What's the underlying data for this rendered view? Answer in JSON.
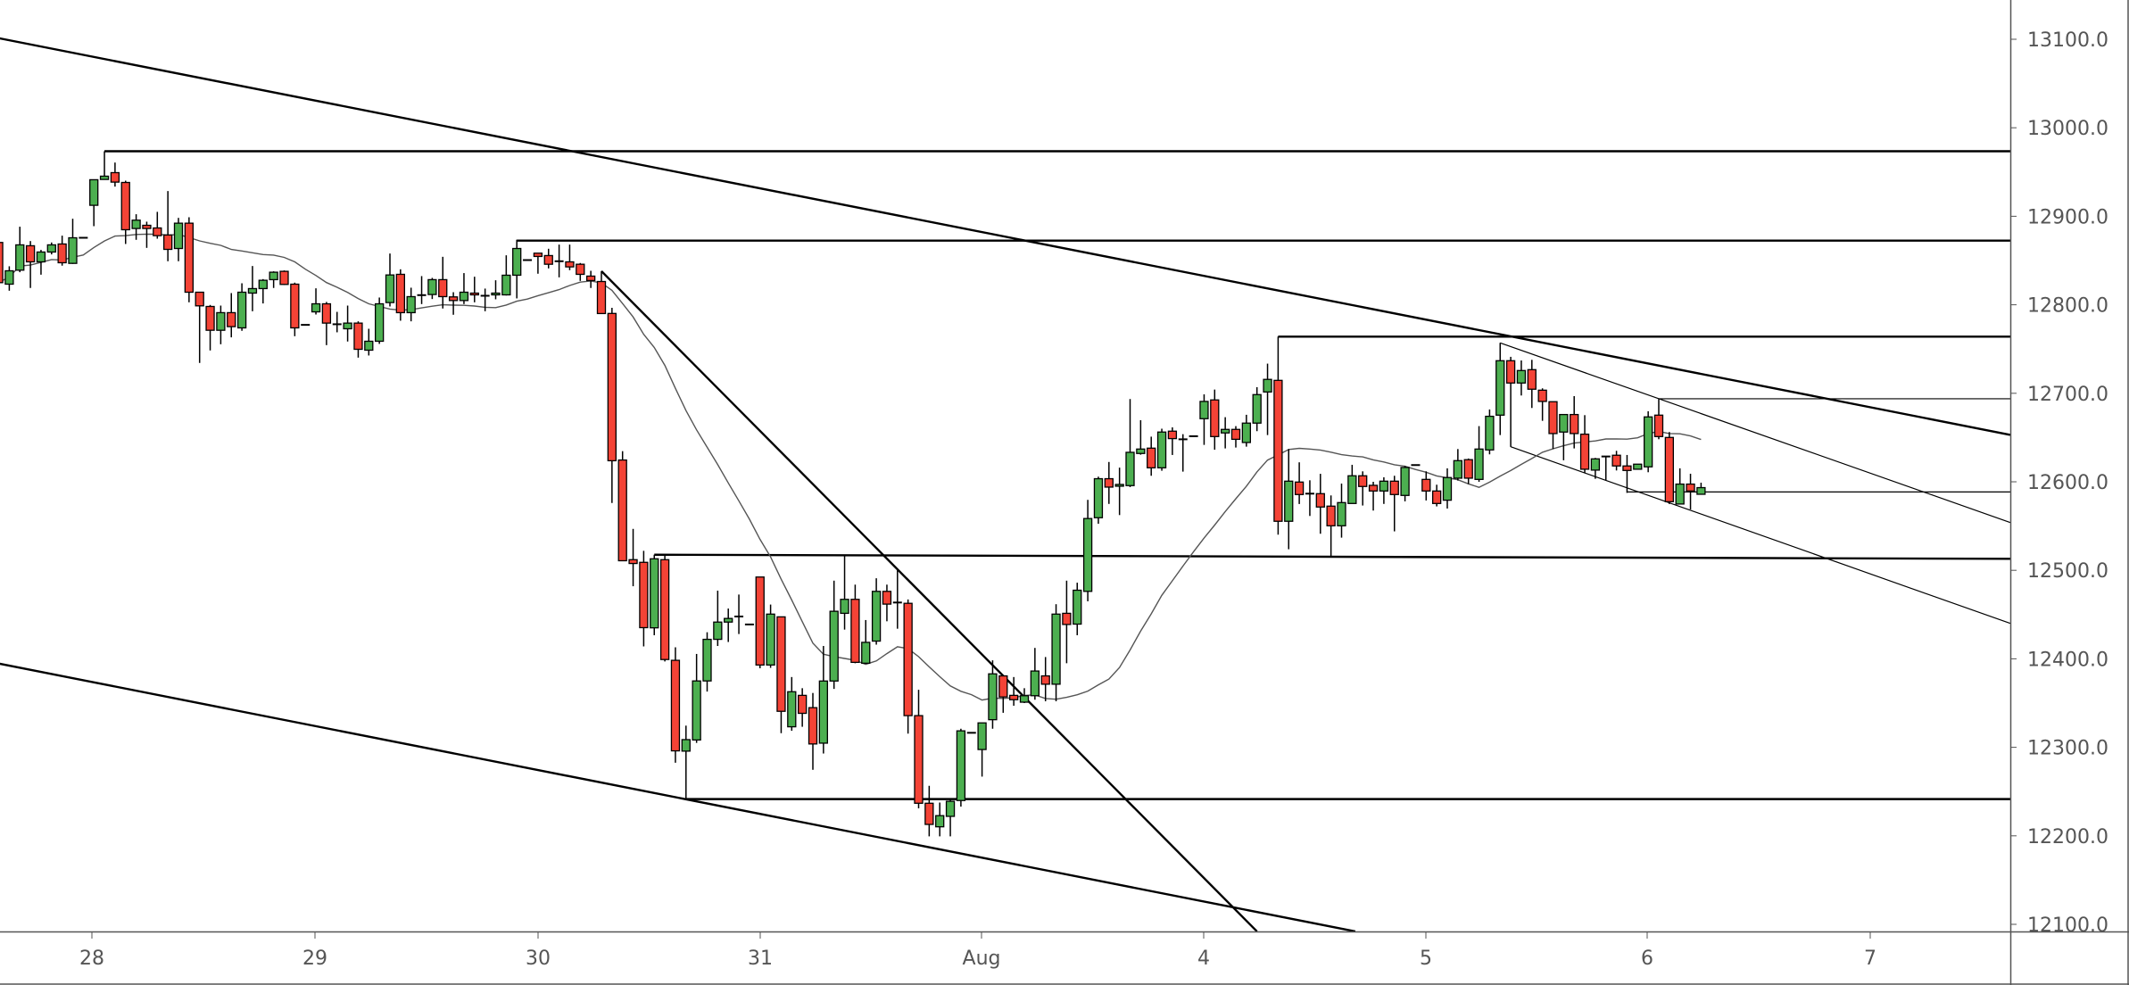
{
  "chart_data": {
    "type": "candlestick",
    "title": "",
    "price_axis": {
      "side": "right",
      "range": [
        12092,
        13122
      ],
      "ticks": [
        "13100.0",
        "13000.0",
        "12900.0",
        "12800.0",
        "12700.0",
        "12600.0",
        "12500.0",
        "12400.0",
        "12300.0",
        "12200.0",
        "12100.0"
      ]
    },
    "time_axis": {
      "ticks": [
        "28",
        "29",
        "30",
        "31",
        "Aug",
        "4",
        "5",
        "6",
        "7"
      ]
    },
    "colors": {
      "up": "#4caf50",
      "down": "#f44336",
      "outline": "#000000",
      "ma": "#555555",
      "drawings": "#000000"
    },
    "moving_average": {
      "type": "SMA",
      "period": 20
    },
    "candle_fields": [
      "open",
      "high",
      "low",
      "close"
    ],
    "candles": [
      [
        12870.4,
        12878.8,
        12821.6,
        12825.0
      ],
      [
        12823.3,
        12843.5,
        12815.9,
        12838.4
      ],
      [
        12839.1,
        12888.2,
        12836.8,
        12867.7
      ],
      [
        12866.7,
        12872.0,
        12819.0,
        12848.5
      ],
      [
        12848.5,
        12862.0,
        12834.0,
        12859.6
      ],
      [
        12859.6,
        12870.4,
        12856.9,
        12867.7
      ],
      [
        12868.7,
        12878.1,
        12844.2,
        12847.5
      ],
      [
        12846.8,
        12897.2,
        12846.2,
        12875.7
      ],
      [
        12875.7,
        12875.7,
        12875.7,
        12875.7
      ],
      [
        12912.4,
        12941.3,
        12888.8,
        12941.3
      ],
      [
        12941.6,
        12973.5,
        12941.6,
        12945.3
      ],
      [
        12949.3,
        12960.7,
        12933.5,
        12938.6
      ],
      [
        12938.2,
        12940.2,
        12868.7,
        12884.8
      ],
      [
        12886.2,
        12902.3,
        12873.4,
        12895.6
      ],
      [
        12889.8,
        12893.9,
        12864.3,
        12886.2
      ],
      [
        12886.8,
        12905.0,
        12874.7,
        12878.1
      ],
      [
        12878.8,
        12928.5,
        12849.2,
        12862.6
      ],
      [
        12863.6,
        12898.2,
        12849.2,
        12892.2
      ],
      [
        12892.2,
        12898.9,
        12802.8,
        12814.2
      ],
      [
        12814.2,
        12814.2,
        12734.3,
        12798.8
      ],
      [
        12798.1,
        12799.8,
        12748.4,
        12771.2
      ],
      [
        12771.2,
        12799.1,
        12755.4,
        12791.1
      ],
      [
        12791.1,
        12813.2,
        12763.2,
        12775.3
      ],
      [
        12773.9,
        12824.3,
        12770.6,
        12814.2
      ],
      [
        12813.2,
        12843.8,
        12792.7,
        12818.3
      ],
      [
        12818.3,
        12829.0,
        12801.5,
        12827.7
      ],
      [
        12828.4,
        12837.8,
        12819.0,
        12836.8
      ],
      [
        12837.8,
        12838.8,
        12822.3,
        12823.0
      ],
      [
        12823.3,
        12825.0,
        12764.5,
        12773.9
      ],
      [
        12777.3,
        12777.3,
        12777.3,
        12777.3
      ],
      [
        12792.0,
        12818.6,
        12789.0,
        12801.1
      ],
      [
        12801.1,
        12803.2,
        12754.4,
        12779.3
      ],
      [
        12778.0,
        12792.0,
        12768.9,
        12778.0
      ],
      [
        12772.9,
        12799.1,
        12758.5,
        12779.3
      ],
      [
        12779.3,
        12781.3,
        12740.3,
        12749.7
      ],
      [
        12748.7,
        12772.9,
        12742.7,
        12758.8
      ],
      [
        12758.8,
        12808.2,
        12755.8,
        12801.1
      ],
      [
        12802.5,
        12857.9,
        12798.1,
        12833.7
      ],
      [
        12834.4,
        12840.1,
        12782.0,
        12791.1
      ],
      [
        12791.1,
        12819.3,
        12781.3,
        12809.2
      ],
      [
        12810.9,
        12832.4,
        12800.8,
        12810.9
      ],
      [
        12811.6,
        12830.4,
        12806.5,
        12828.4
      ],
      [
        12828.4,
        12854.2,
        12795.8,
        12809.2
      ],
      [
        12808.9,
        12814.2,
        12788.7,
        12804.8
      ],
      [
        12804.8,
        12835.8,
        12800.8,
        12814.2
      ],
      [
        12813.2,
        12831.7,
        12802.8,
        12811.2
      ],
      [
        12810.2,
        12818.3,
        12792.7,
        12810.2
      ],
      [
        12811.2,
        12827.7,
        12806.2,
        12813.2
      ],
      [
        12811.2,
        12855.9,
        12810.5,
        12833.4
      ],
      [
        12833.4,
        12873.4,
        12807.2,
        12863.6
      ],
      [
        12850.5,
        12850.5,
        12850.5,
        12850.5
      ],
      [
        12858.3,
        12858.3,
        12835.1,
        12854.6
      ],
      [
        12855.6,
        12863.3,
        12841.1,
        12845.8
      ],
      [
        12849.2,
        12868.0,
        12831.0,
        12849.2
      ],
      [
        12848.5,
        12868.0,
        12839.1,
        12842.8
      ],
      [
        12845.8,
        12847.2,
        12827.0,
        12834.4
      ],
      [
        12832.4,
        12838.4,
        12819.0,
        12827.4
      ],
      [
        12826.3,
        12837.8,
        12790.1,
        12790.1
      ],
      [
        12790.2,
        12796.6,
        12576.0,
        12623.8
      ],
      [
        12624.6,
        12634.6,
        12510.8,
        12510.8
      ],
      [
        12512.0,
        12546.8,
        12482.0,
        12507.7
      ],
      [
        12509.0,
        12522.0,
        12414.0,
        12435.2
      ],
      [
        12435.0,
        12517.6,
        12426.6,
        12513.0
      ],
      [
        12512.0,
        12516.6,
        12397.0,
        12399.2
      ],
      [
        12398.3,
        12413.0,
        12282.6,
        12296.0
      ],
      [
        12295.7,
        12324.5,
        12241.3,
        12308.7
      ],
      [
        12308.3,
        12405.5,
        12305.0,
        12375.0
      ],
      [
        12375.0,
        12430.0,
        12363.0,
        12422.0
      ],
      [
        12422.0,
        12477.0,
        12414.5,
        12441.5
      ],
      [
        12441.5,
        12456.8,
        12419.0,
        12445.6
      ],
      [
        12447.8,
        12472.6,
        12428.0,
        12447.8
      ],
      [
        12438.8,
        12438.8,
        12438.8,
        12438.8
      ],
      [
        12492.4,
        12492.4,
        12389.3,
        12393.0
      ],
      [
        12393.0,
        12461.3,
        12389.8,
        12450.5
      ],
      [
        12447.4,
        12447.4,
        12316.0,
        12340.7
      ],
      [
        12323.2,
        12379.4,
        12318.7,
        12362.8
      ],
      [
        12358.7,
        12366.8,
        12323.2,
        12338.4
      ],
      [
        12344.8,
        12361.4,
        12274.6,
        12303.8
      ],
      [
        12304.7,
        12414.5,
        12293.0,
        12374.9
      ],
      [
        12374.9,
        12488.3,
        12366.0,
        12453.7
      ],
      [
        12451.4,
        12516.0,
        12433.0,
        12467.2
      ],
      [
        12467.2,
        12483.8,
        12395.0,
        12396.0
      ],
      [
        12395.0,
        12443.8,
        12395.0,
        12418.6
      ],
      [
        12420.0,
        12491.0,
        12416.0,
        12476.2
      ],
      [
        12476.2,
        12483.8,
        12442.4,
        12461.8
      ],
      [
        12463.6,
        12501.0,
        12434.0,
        12463.6
      ],
      [
        12462.7,
        12467.0,
        12315.5,
        12335.8
      ],
      [
        12335.8,
        12365.0,
        12231.0,
        12236.8
      ],
      [
        12236.8,
        12256.5,
        12199.4,
        12212.9
      ],
      [
        12210.2,
        12237.6,
        12199.4,
        12222.8
      ],
      [
        12222.0,
        12240.8,
        12199.4,
        12239.0
      ],
      [
        12239.9,
        12321.0,
        12233.0,
        12318.6
      ],
      [
        12316.4,
        12316.4,
        12316.4,
        12316.4
      ],
      [
        12297.5,
        12327.6,
        12266.9,
        12327.6
      ],
      [
        12331.2,
        12398.3,
        12321.0,
        12383.0
      ],
      [
        12380.7,
        12380.7,
        12339.0,
        12356.9
      ],
      [
        12358.7,
        12379.4,
        12347.0,
        12353.8
      ],
      [
        12351.0,
        12366.8,
        12350.0,
        12358.3
      ],
      [
        12358.3,
        12412.3,
        12353.8,
        12386.2
      ],
      [
        12380.7,
        12402.0,
        12352.0,
        12371.3
      ],
      [
        12371.3,
        12461.7,
        12352.0,
        12450.5
      ],
      [
        12451.4,
        12488.3,
        12395.0,
        12438.8
      ],
      [
        12439.2,
        12486.0,
        12426.6,
        12477.5
      ],
      [
        12476.2,
        12579.6,
        12465.0,
        12558.5
      ],
      [
        12559.4,
        12605.8,
        12552.6,
        12603.5
      ],
      [
        12603.5,
        12622.4,
        12575.0,
        12594.0
      ],
      [
        12595.0,
        12616.0,
        12562.4,
        12597.0
      ],
      [
        12595.7,
        12693.5,
        12594.0,
        12633.3
      ],
      [
        12632.0,
        12669.6,
        12630.6,
        12637.0
      ],
      [
        12638.0,
        12651.0,
        12606.8,
        12615.8
      ],
      [
        12615.8,
        12660.0,
        12612.5,
        12656.2
      ],
      [
        12657.2,
        12661.5,
        12630.3,
        12648.8
      ],
      [
        12648.0,
        12653.8,
        12611.5,
        12648.0
      ],
      [
        12651.5,
        12651.5,
        12651.5,
        12651.5
      ],
      [
        12671.3,
        12698.8,
        12641.7,
        12690.8
      ],
      [
        12692.5,
        12704.2,
        12636.3,
        12651.1
      ],
      [
        12655.2,
        12673.0,
        12637.7,
        12659.2
      ],
      [
        12659.2,
        12662.9,
        12638.7,
        12648.0
      ],
      [
        12644.4,
        12675.7,
        12639.7,
        12666.3
      ],
      [
        12666.3,
        12706.9,
        12657.2,
        12698.5
      ],
      [
        12701.5,
        12733.5,
        12652.8,
        12715.7
      ],
      [
        12714.6,
        12764.0,
        12540.3,
        12555.4
      ],
      [
        12555.4,
        12637.0,
        12523.8,
        12600.7
      ],
      [
        12599.7,
        12622.0,
        12574.9,
        12585.6
      ],
      [
        12586.6,
        12601.7,
        12561.4,
        12586.6
      ],
      [
        12586.6,
        12609.0,
        12541.3,
        12571.5
      ],
      [
        12572.5,
        12584.6,
        12516.1,
        12550.3
      ],
      [
        12550.3,
        12598.0,
        12536.9,
        12576.5
      ],
      [
        12575.5,
        12619.2,
        12575.5,
        12606.8
      ],
      [
        12606.8,
        12611.8,
        12573.2,
        12594.7
      ],
      [
        12596.0,
        12600.0,
        12567.5,
        12589.6
      ],
      [
        12589.6,
        12605.1,
        12575.0,
        12600.7
      ],
      [
        12600.7,
        12606.8,
        12544.0,
        12585.6
      ],
      [
        12584.6,
        12617.9,
        12577.9,
        12616.2
      ],
      [
        12618.9,
        12618.9,
        12618.9,
        12618.9
      ],
      [
        12602.7,
        12611.8,
        12578.9,
        12589.6
      ],
      [
        12589.6,
        12596.7,
        12572.2,
        12575.5
      ],
      [
        12579.2,
        12615.2,
        12569.8,
        12604.8
      ],
      [
        12604.1,
        12637.0,
        12601.4,
        12623.9
      ],
      [
        12625.0,
        12626.3,
        12597.4,
        12604.1
      ],
      [
        12602.7,
        12662.9,
        12600.0,
        12637.0
      ],
      [
        12636.0,
        12681.7,
        12631.0,
        12674.0
      ],
      [
        12675.3,
        12757.0,
        12652.8,
        12736.8
      ],
      [
        12736.8,
        12741.2,
        12639.4,
        12711.6
      ],
      [
        12711.6,
        12737.1,
        12697.5,
        12725.7
      ],
      [
        12726.7,
        12737.8,
        12683.4,
        12704.6
      ],
      [
        12703.5,
        12705.6,
        12668.9,
        12690.8
      ],
      [
        12690.5,
        12690.5,
        12637.0,
        12654.5
      ],
      [
        12656.2,
        12676.0,
        12624.3,
        12676.0
      ],
      [
        12676.0,
        12696.8,
        12637.7,
        12654.5
      ],
      [
        12653.8,
        12675.3,
        12610.1,
        12614.2
      ],
      [
        12613.2,
        12627.0,
        12603.4,
        12625.9
      ],
      [
        12628.6,
        12628.6,
        12601.7,
        12628.6
      ],
      [
        12630.0,
        12635.0,
        12612.8,
        12617.9
      ],
      [
        12617.9,
        12630.3,
        12587.6,
        12612.8
      ],
      [
        12614.2,
        12619.9,
        12614.2,
        12619.9
      ],
      [
        12616.9,
        12679.7,
        12610.8,
        12673.3
      ],
      [
        12675.3,
        12693.5,
        12648.1,
        12651.1
      ],
      [
        12650.1,
        12656.2,
        12574.9,
        12577.5
      ],
      [
        12574.9,
        12615.2,
        12574.9,
        12597.4
      ],
      [
        12597.4,
        12609.1,
        12568.8,
        12589.6
      ],
      [
        12585.9,
        12599.0,
        12585.9,
        12593.4
      ]
    ],
    "drawings": {
      "horizontal_levels": [
        {
          "price": 12973.5,
          "from_bar": 10,
          "weight": "bold"
        },
        {
          "price": 12872.5,
          "from_bar": 49,
          "weight": "bold"
        },
        {
          "price": 12764.0,
          "from_bar": 121,
          "weight": "bold"
        },
        {
          "price": 12693.8,
          "from_bar": 157,
          "weight": "thin"
        },
        {
          "price": 12588.5,
          "from_bar": 154,
          "weight": "thin"
        },
        {
          "price": 12241.5,
          "from_bar": 65,
          "weight": "bold"
        }
      ],
      "trendlines": [
        {
          "from": {
            "bar": 0.1,
            "price": 13101
          },
          "to": {
            "bar": 190.3,
            "price": 12653
          },
          "weight": "bold"
        },
        {
          "from": {
            "bar": 0.1,
            "price": 12394.4
          },
          "to": {
            "bar": 128.3,
            "price": 12092
          },
          "weight": "bold"
        },
        {
          "from": {
            "bar": 57,
            "price": 12838
          },
          "to": {
            "bar": 119,
            "price": 12092
          },
          "weight": "bold"
        },
        {
          "from": {
            "bar": 62,
            "price": 12517.6
          },
          "to": {
            "bar": 190.3,
            "price": 12513
          },
          "weight": "bold"
        },
        {
          "from": {
            "bar": 142,
            "price": 12757
          },
          "to": {
            "bar": 190.3,
            "price": 12554
          },
          "weight": "thin"
        },
        {
          "from": {
            "bar": 143,
            "price": 12639.6
          },
          "to": {
            "bar": 190.3,
            "price": 12440
          },
          "weight": "thin"
        }
      ]
    }
  }
}
